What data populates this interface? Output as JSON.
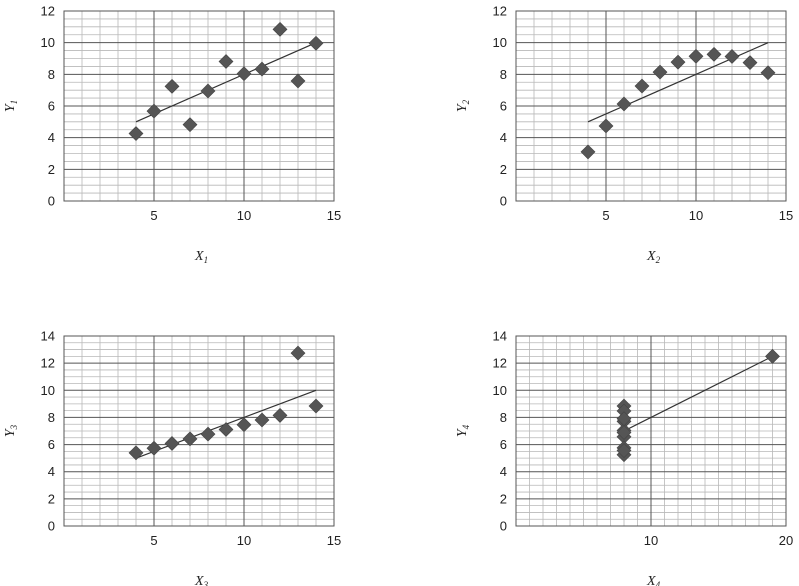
{
  "chart_data": [
    {
      "type": "scatter",
      "xlabel": "X",
      "xlabel_sub": "1",
      "ylabel": "Y",
      "ylabel_sub": "1",
      "xlim": [
        0,
        15
      ],
      "ylim": [
        0,
        12
      ],
      "xticks": [
        5,
        10,
        15
      ],
      "yticks": [
        0,
        2,
        4,
        6,
        8,
        10,
        12
      ],
      "xminor": 1,
      "yminor": 0.5,
      "grid": true,
      "marker": "diamond",
      "color": "#555555",
      "points": [
        [
          4,
          4.26
        ],
        [
          5,
          5.68
        ],
        [
          6,
          7.24
        ],
        [
          7,
          4.82
        ],
        [
          8,
          6.95
        ],
        [
          9,
          8.81
        ],
        [
          10,
          8.04
        ],
        [
          11,
          8.33
        ],
        [
          12,
          10.84
        ],
        [
          13,
          7.58
        ],
        [
          14,
          9.96
        ]
      ],
      "fit_line": [
        [
          4,
          5.0
        ],
        [
          14,
          10.0
        ]
      ]
    },
    {
      "type": "scatter",
      "xlabel": "X",
      "xlabel_sub": "2",
      "ylabel": "Y",
      "ylabel_sub": "2",
      "xlim": [
        0,
        15
      ],
      "ylim": [
        0,
        12
      ],
      "xticks": [
        5,
        10,
        15
      ],
      "yticks": [
        0,
        2,
        4,
        6,
        8,
        10,
        12
      ],
      "xminor": 1,
      "yminor": 0.5,
      "grid": true,
      "marker": "diamond",
      "color": "#555555",
      "points": [
        [
          4,
          3.1
        ],
        [
          5,
          4.74
        ],
        [
          6,
          6.13
        ],
        [
          7,
          7.26
        ],
        [
          8,
          8.14
        ],
        [
          9,
          8.77
        ],
        [
          10,
          9.14
        ],
        [
          11,
          9.26
        ],
        [
          12,
          9.13
        ],
        [
          13,
          8.74
        ],
        [
          14,
          8.1
        ]
      ],
      "fit_line": [
        [
          4,
          5.0
        ],
        [
          14,
          10.0
        ]
      ]
    },
    {
      "type": "scatter",
      "xlabel": "X",
      "xlabel_sub": "3",
      "ylabel": "Y",
      "ylabel_sub": "3",
      "xlim": [
        0,
        15
      ],
      "ylim": [
        0,
        14
      ],
      "xticks": [
        5,
        10,
        15
      ],
      "yticks": [
        0,
        2,
        4,
        6,
        8,
        10,
        12,
        14
      ],
      "xminor": 1,
      "yminor": 0.5,
      "grid": true,
      "marker": "diamond",
      "color": "#555555",
      "points": [
        [
          4,
          5.39
        ],
        [
          5,
          5.73
        ],
        [
          6,
          6.08
        ],
        [
          7,
          6.42
        ],
        [
          8,
          6.77
        ],
        [
          9,
          7.11
        ],
        [
          10,
          7.46
        ],
        [
          11,
          7.81
        ],
        [
          12,
          8.15
        ],
        [
          13,
          12.74
        ],
        [
          14,
          8.84
        ]
      ],
      "fit_line": [
        [
          4,
          5.0
        ],
        [
          14,
          10.0
        ]
      ]
    },
    {
      "type": "scatter",
      "xlabel": "X",
      "xlabel_sub": "4",
      "ylabel": "Y",
      "ylabel_sub": "4",
      "xlim": [
        0,
        20
      ],
      "ylim": [
        0,
        14
      ],
      "xticks": [
        10,
        20
      ],
      "yticks": [
        0,
        2,
        4,
        6,
        8,
        10,
        12,
        14
      ],
      "xminor": 1,
      "yminor": 0.5,
      "grid": true,
      "marker": "diamond",
      "color": "#555555",
      "points": [
        [
          8,
          6.58
        ],
        [
          8,
          5.76
        ],
        [
          8,
          7.71
        ],
        [
          8,
          8.84
        ],
        [
          8,
          8.47
        ],
        [
          8,
          7.04
        ],
        [
          8,
          5.25
        ],
        [
          19,
          12.5
        ],
        [
          8,
          5.56
        ],
        [
          8,
          7.91
        ],
        [
          8,
          6.89
        ]
      ],
      "fit_line": [
        [
          8,
          7.0
        ],
        [
          19,
          12.5
        ]
      ]
    }
  ]
}
